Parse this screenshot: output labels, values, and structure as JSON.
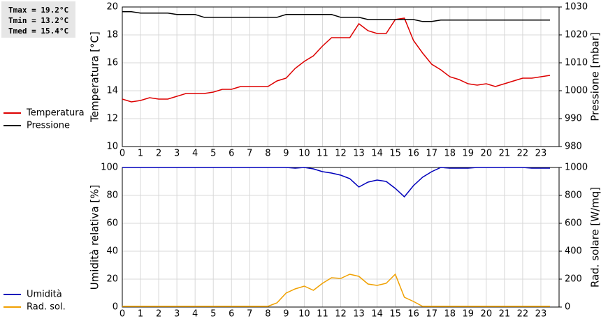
{
  "stats": [
    "Tmax = 19.2°C",
    "Tmin = 13.2°C",
    "Tmed = 15.4°C"
  ],
  "chart_data": [
    {
      "type": "line",
      "ylabel": "Temperatura [°C]",
      "y2label": "Pressione [mbar]",
      "x": [
        0,
        0.5,
        1,
        1.5,
        2,
        2.5,
        3,
        3.5,
        4,
        4.5,
        5,
        5.5,
        6,
        6.5,
        7,
        7.5,
        8,
        8.5,
        9,
        9.5,
        10,
        10.5,
        11,
        11.5,
        12,
        12.5,
        13,
        13.5,
        14,
        14.5,
        15,
        15.5,
        16,
        16.5,
        17,
        17.5,
        18,
        18.5,
        19,
        19.5,
        20,
        20.5,
        21,
        21.5,
        22,
        22.5,
        23,
        23.5
      ],
      "xlim": [
        0,
        24
      ],
      "xticks": [
        0,
        1,
        2,
        3,
        4,
        5,
        6,
        7,
        8,
        9,
        10,
        11,
        12,
        13,
        14,
        15,
        16,
        17,
        18,
        19,
        20,
        21,
        22,
        23
      ],
      "ylim": [
        10,
        20
      ],
      "yticks": [
        10,
        12,
        14,
        16,
        18,
        20
      ],
      "y2lim": [
        980,
        1030
      ],
      "y2ticks": [
        980,
        990,
        1000,
        1010,
        1020,
        1030
      ],
      "grid": true,
      "series": [
        {
          "name": "Temperatura",
          "color": "#dd0000",
          "values": [
            13.4,
            13.2,
            13.3,
            13.5,
            13.4,
            13.4,
            13.6,
            13.8,
            13.8,
            13.8,
            13.9,
            14.1,
            14.1,
            14.3,
            14.3,
            14.3,
            14.3,
            14.7,
            14.9,
            15.6,
            16.1,
            16.5,
            17.2,
            17.8,
            17.8,
            17.8,
            18.8,
            18.3,
            18.1,
            18.1,
            19.1,
            19.2,
            17.6,
            16.7,
            15.9,
            15.5,
            15.0,
            14.8,
            14.5,
            14.4,
            14.5,
            14.3,
            14.5,
            14.7,
            14.9,
            14.9,
            15.0,
            15.1
          ]
        },
        {
          "name": "Pressione",
          "color": "#000000",
          "axis": "y2",
          "values": [
            1028.3,
            1028.3,
            1027.8,
            1027.8,
            1027.8,
            1027.8,
            1027.3,
            1027.3,
            1027.3,
            1026.3,
            1026.3,
            1026.3,
            1026.3,
            1026.3,
            1026.3,
            1026.3,
            1026.3,
            1026.3,
            1027.3,
            1027.3,
            1027.3,
            1027.3,
            1027.3,
            1027.3,
            1026.3,
            1026.3,
            1026.3,
            1025.5,
            1025.5,
            1025.5,
            1025.5,
            1025.5,
            1025.5,
            1024.8,
            1024.8,
            1025.3,
            1025.3,
            1025.3,
            1025.3,
            1025.3,
            1025.3,
            1025.3,
            1025.3,
            1025.3,
            1025.3,
            1025.3,
            1025.3,
            1025.3
          ]
        }
      ]
    },
    {
      "type": "line",
      "ylabel": "Umidità relativa [%]",
      "y2label": "Rad. solare [W/mq]",
      "x": [
        0,
        0.5,
        1,
        1.5,
        2,
        2.5,
        3,
        3.5,
        4,
        4.5,
        5,
        5.5,
        6,
        6.5,
        7,
        7.5,
        8,
        8.5,
        9,
        9.5,
        10,
        10.5,
        11,
        11.5,
        12,
        12.5,
        13,
        13.5,
        14,
        14.5,
        15,
        15.5,
        16,
        16.5,
        17,
        17.5,
        18,
        18.5,
        19,
        19.5,
        20,
        20.5,
        21,
        21.5,
        22,
        22.5,
        23,
        23.5
      ],
      "xlim": [
        0,
        24
      ],
      "xticks": [
        0,
        1,
        2,
        3,
        4,
        5,
        6,
        7,
        8,
        9,
        10,
        11,
        12,
        13,
        14,
        15,
        16,
        17,
        18,
        19,
        20,
        21,
        22,
        23
      ],
      "ylim": [
        0,
        100
      ],
      "yticks": [
        0,
        20,
        40,
        60,
        80,
        100
      ],
      "y2lim": [
        0,
        1000
      ],
      "y2ticks": [
        0,
        200,
        400,
        600,
        800,
        1000
      ],
      "grid": true,
      "series": [
        {
          "name": "Umidità",
          "color": "#0000bb",
          "values": [
            100,
            100,
            100,
            100,
            100,
            100,
            100,
            100,
            100,
            100,
            100,
            100,
            100,
            100,
            100,
            100,
            100,
            100,
            100,
            99.5,
            100,
            99,
            97,
            96,
            94.5,
            92,
            86,
            89.5,
            91,
            90,
            85,
            79,
            87,
            93,
            97,
            100,
            99.5,
            99.5,
            99.5,
            100,
            100,
            100,
            100,
            100,
            100,
            99.5,
            99.5,
            99.5
          ]
        },
        {
          "name": "Rad. sol.",
          "color": "#f0a000",
          "axis": "y2",
          "values": [
            5,
            5,
            5,
            5,
            5,
            5,
            5,
            5,
            5,
            5,
            5,
            5,
            5,
            5,
            5,
            5,
            5,
            30,
            100,
            130,
            150,
            120,
            170,
            210,
            205,
            235,
            220,
            165,
            155,
            170,
            235,
            70,
            40,
            5,
            5,
            5,
            5,
            5,
            5,
            5,
            5,
            5,
            5,
            5,
            5,
            5,
            5,
            5
          ]
        }
      ]
    }
  ]
}
